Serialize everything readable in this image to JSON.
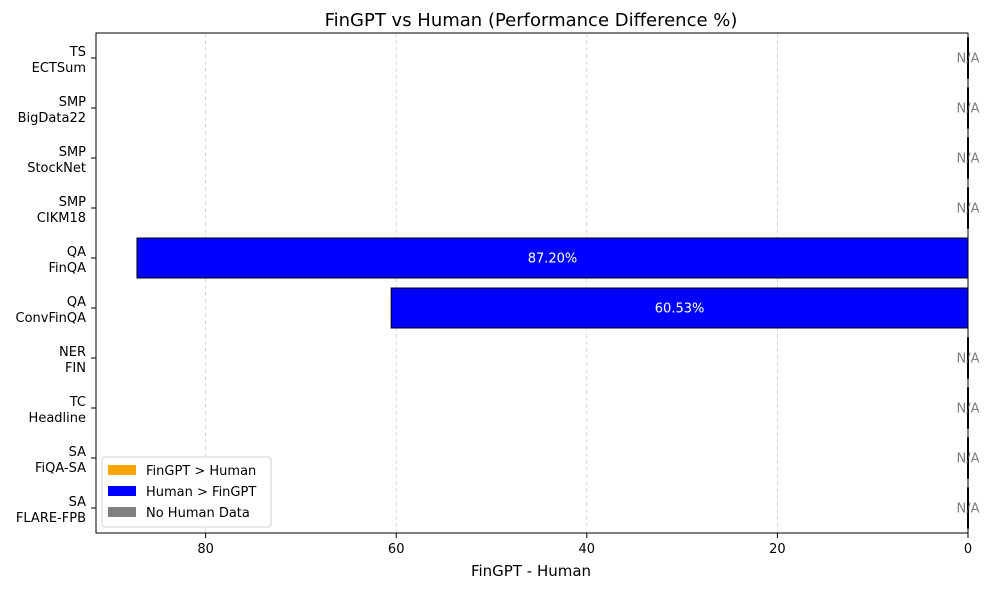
{
  "chart_data": {
    "type": "bar",
    "orientation": "horizontal",
    "title": "FinGPT vs Human (Performance Difference %)",
    "xlabel": "FinGPT - Human",
    "ylabel": "",
    "xlim": [
      91.5,
      0
    ],
    "x_inverted": true,
    "xticks": [
      80,
      60,
      40,
      20,
      0
    ],
    "xgrid": true,
    "categories": [
      {
        "task": "TS",
        "dataset": "ECTSum",
        "value": null,
        "label": "N/A",
        "group": "none"
      },
      {
        "task": "SMP",
        "dataset": "BigData22",
        "value": null,
        "label": "N/A",
        "group": "none"
      },
      {
        "task": "SMP",
        "dataset": "StockNet",
        "value": null,
        "label": "N/A",
        "group": "none"
      },
      {
        "task": "SMP",
        "dataset": "CIKM18",
        "value": null,
        "label": "N/A",
        "group": "none"
      },
      {
        "task": "QA",
        "dataset": "FinQA",
        "value": 87.2,
        "label": "87.20%",
        "group": "human"
      },
      {
        "task": "QA",
        "dataset": "ConvFinQA",
        "value": 60.53,
        "label": "60.53%",
        "group": "human"
      },
      {
        "task": "NER",
        "dataset": "FIN",
        "value": null,
        "label": "N/A",
        "group": "none"
      },
      {
        "task": "TC",
        "dataset": "Headline",
        "value": null,
        "label": "N/A",
        "group": "none"
      },
      {
        "task": "SA",
        "dataset": "FiQA-SA",
        "value": null,
        "label": "N/A",
        "group": "none"
      },
      {
        "task": "SA",
        "dataset": "FLARE-FPB",
        "value": null,
        "label": "N/A",
        "group": "none"
      }
    ],
    "legend": {
      "position": "lower-left",
      "entries": [
        {
          "label": "FinGPT > Human",
          "color": "#ffa500"
        },
        {
          "label": "Human > FinGPT",
          "color": "#0000ff"
        },
        {
          "label": "No Human Data",
          "color": "#808080"
        }
      ]
    },
    "colors": {
      "human": "#0000ff",
      "fingpt": "#ffa500",
      "none": "#808080",
      "value_text_on_bar": "#ffffff",
      "na_text": "#808080"
    }
  }
}
